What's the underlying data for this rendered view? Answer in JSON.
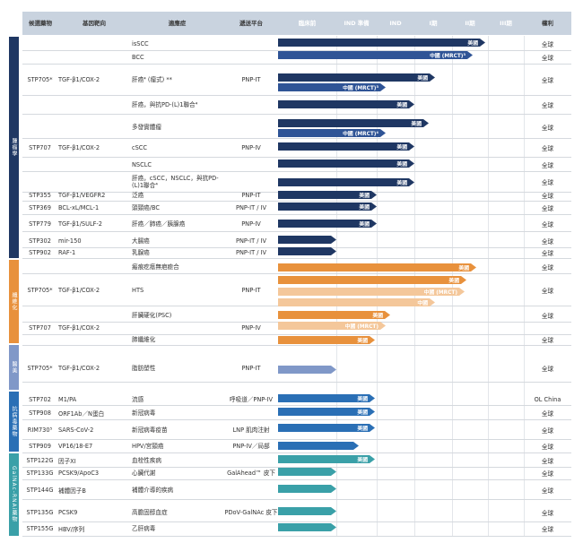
{
  "header": {
    "candidate": "候選藥物",
    "target": "基因靶向",
    "indication": "適應症",
    "platform": "遞送平台",
    "preclinical": "臨床前",
    "ind_prep": "IND 準備",
    "ind": "IND",
    "phase1": "I期",
    "phase2": "II期",
    "phase3": "III期",
    "rights": "權利"
  },
  "categories": [
    {
      "label": "腫瘤學"
    },
    {
      "label": "纖維化"
    },
    {
      "label": "醫美"
    },
    {
      "label": "抗病毒藥物"
    },
    {
      "label": "GalNAc-RNAi藥物"
    }
  ],
  "rows": [
    {
      "candidate": "",
      "target": "",
      "indication": "isSCC",
      "platform": "",
      "rights": "全球",
      "bars": [
        {
          "label": "美國"
        }
      ]
    },
    {
      "candidate": "",
      "target": "",
      "indication": "BCC",
      "platform": "",
      "rights": "全球",
      "bars": [
        {
          "label": "中國 (MRCT)³"
        }
      ]
    },
    {
      "candidate": "STP705*",
      "target": "TGF-β1/COX-2",
      "indication": "肝癌⁴ (瘤式) **",
      "platform": "PNP-IT",
      "rights": "全球",
      "bars": [
        {
          "label": "美國"
        },
        {
          "label": "中國 (MRCT)³"
        }
      ]
    },
    {
      "candidate": "",
      "target": "",
      "indication": "肝癌，與抗PD-(L)1聯合⁴",
      "platform": "",
      "rights": "全球",
      "bars": [
        {
          "label": "美國"
        }
      ]
    },
    {
      "candidate": "",
      "target": "",
      "indication": "多發實體瘤",
      "platform": "",
      "rights": "全球",
      "bars": [
        {
          "label": "美國"
        },
        {
          "label": "中國 (MRCT)⁴"
        }
      ]
    },
    {
      "candidate": "STP707",
      "target": "TGF-β1/COX-2",
      "indication": "cSCC",
      "platform": "PNP-IV",
      "rights": "全球",
      "bars": [
        {
          "label": "美國"
        }
      ]
    },
    {
      "candidate": "",
      "target": "",
      "indication": "NSCLC",
      "platform": "",
      "rights": "全球",
      "bars": [
        {
          "label": "美國"
        }
      ]
    },
    {
      "candidate": "",
      "target": "",
      "indication": "肝癌，cSCC，NSCLC，與抗PD-(L)1聯合⁴",
      "platform": "",
      "rights": "全球",
      "bars": [
        {
          "label": "美國"
        }
      ]
    },
    {
      "candidate": "STP355",
      "target": "TGF-β1/VEGFR2",
      "indication": "泛癌",
      "platform": "PNP-IT",
      "rights": "全球",
      "bars": [
        {
          "label": "美國"
        }
      ]
    },
    {
      "candidate": "STP369",
      "target": "BCL-xL/MCL-1",
      "indication": "頭頸癌/BC",
      "platform": "PNP-IT / IV",
      "rights": "全球",
      "bars": [
        {
          "label": "美國"
        }
      ]
    },
    {
      "candidate": "STP779",
      "target": "TGF-β1/SULF-2",
      "indication": "肝癌／肺癌／胰腺癌",
      "platform": "PNP-IV",
      "rights": "全球",
      "bars": [
        {
          "label": "美國"
        }
      ]
    },
    {
      "candidate": "STP302",
      "target": "mir-150",
      "indication": "大腸癌",
      "platform": "PNP-IT / IV",
      "rights": "全球",
      "bars": [
        {
          "label": ""
        }
      ]
    },
    {
      "candidate": "STP902",
      "target": "RAF-1",
      "indication": "乳腺癌",
      "platform": "PNP-IT / IV",
      "rights": "全球",
      "bars": [
        {
          "label": ""
        }
      ]
    },
    {
      "candidate": "",
      "target": "",
      "indication": "瘢痕疙瘩無疤癒合",
      "platform": "",
      "rights": "全球",
      "bars": [
        {
          "label": "美國"
        }
      ]
    },
    {
      "candidate": "STP705*",
      "target": "TGF-β1/COX-2",
      "indication": "HTS",
      "platform": "PNP-IT",
      "rights": "全球",
      "bars": [
        {
          "label": "美國"
        },
        {
          "label": "中國 (MRCT)"
        },
        {
          "label": "中國"
        }
      ]
    },
    {
      "candidate": "",
      "target": "",
      "indication": "肝臟硬化(PSC)",
      "platform": "",
      "rights": "全球",
      "bars": [
        {
          "label": "美國"
        }
      ]
    },
    {
      "candidate": "STP707",
      "target": "TGF-β1/COX-2",
      "indication": "",
      "platform": "PNP-IV",
      "rights": "",
      "bars": [
        {
          "label": "中國 (MRCT)"
        }
      ]
    },
    {
      "candidate": "",
      "target": "",
      "indication": "肺纖維化",
      "platform": "",
      "rights": "全球",
      "bars": [
        {
          "label": "美國"
        }
      ]
    },
    {
      "candidate": "STP705*",
      "target": "TGF-β1/COX-2",
      "indication": "脂肪塑性",
      "platform": "PNP-IT",
      "rights": "全球",
      "bars": [
        {
          "label": ""
        }
      ]
    },
    {
      "candidate": "STP702",
      "target": "M1/PA",
      "indication": "流感",
      "platform": "呼吸道／PNP-IV",
      "rights": "OL China",
      "bars": [
        {
          "label": "美國"
        }
      ]
    },
    {
      "candidate": "STP908",
      "target": "ORF1Ab／N蛋白",
      "indication": "新冠病毒",
      "platform": "",
      "rights": "全球",
      "bars": [
        {
          "label": "美國"
        }
      ]
    },
    {
      "candidate": "RIM730⁵",
      "target": "SARS-CoV-2",
      "indication": "新冠病毒疫苗",
      "platform": "LNP 肌肉注射",
      "rights": "全球",
      "bars": [
        {
          "label": "美國"
        }
      ]
    },
    {
      "candidate": "STP909",
      "target": "VP16/18-E7",
      "indication": "HPV/宮頸癌",
      "platform": "PNP-IV／局部",
      "rights": "全球",
      "bars": [
        {
          "label": ""
        }
      ]
    },
    {
      "candidate": "STP122G",
      "target": "因子XI",
      "indication": "血栓性疾病",
      "platform": "",
      "rights": "全球",
      "bars": [
        {
          "label": "美國"
        }
      ]
    },
    {
      "candidate": "STP133G",
      "target": "PCSK9/ApoC3",
      "indication": "心臟代謝",
      "platform": "GalAhead™ 皮下",
      "rights": "全球",
      "bars": [
        {
          "label": ""
        }
      ]
    },
    {
      "candidate": "STP144G",
      "target": "補體因子B",
      "indication": "補體介導的疾病",
      "platform": "",
      "rights": "全球",
      "bars": [
        {
          "label": ""
        }
      ]
    },
    {
      "candidate": "STP135G",
      "target": "PCSK9",
      "indication": "高膽固醇血症",
      "platform": "PDoV-GalNAc 皮下",
      "rights": "全球",
      "bars": [
        {
          "label": ""
        }
      ]
    },
    {
      "candidate": "STP155G",
      "target": "HBV/序列",
      "indication": "乙肝病毒",
      "platform": "",
      "rights": "全球",
      "bars": [
        {
          "label": ""
        }
      ]
    }
  ],
  "colors": {
    "header_bg": "#c9d3df",
    "oncology": "#1f3763",
    "oncology_light": "#2f5496",
    "fibrosis": "#e8913c",
    "fibrosis_light": "#f4c79a",
    "aesthetics": "#8098c8",
    "antiviral": "#2a6fb5",
    "galnac": "#3aa0a8"
  }
}
